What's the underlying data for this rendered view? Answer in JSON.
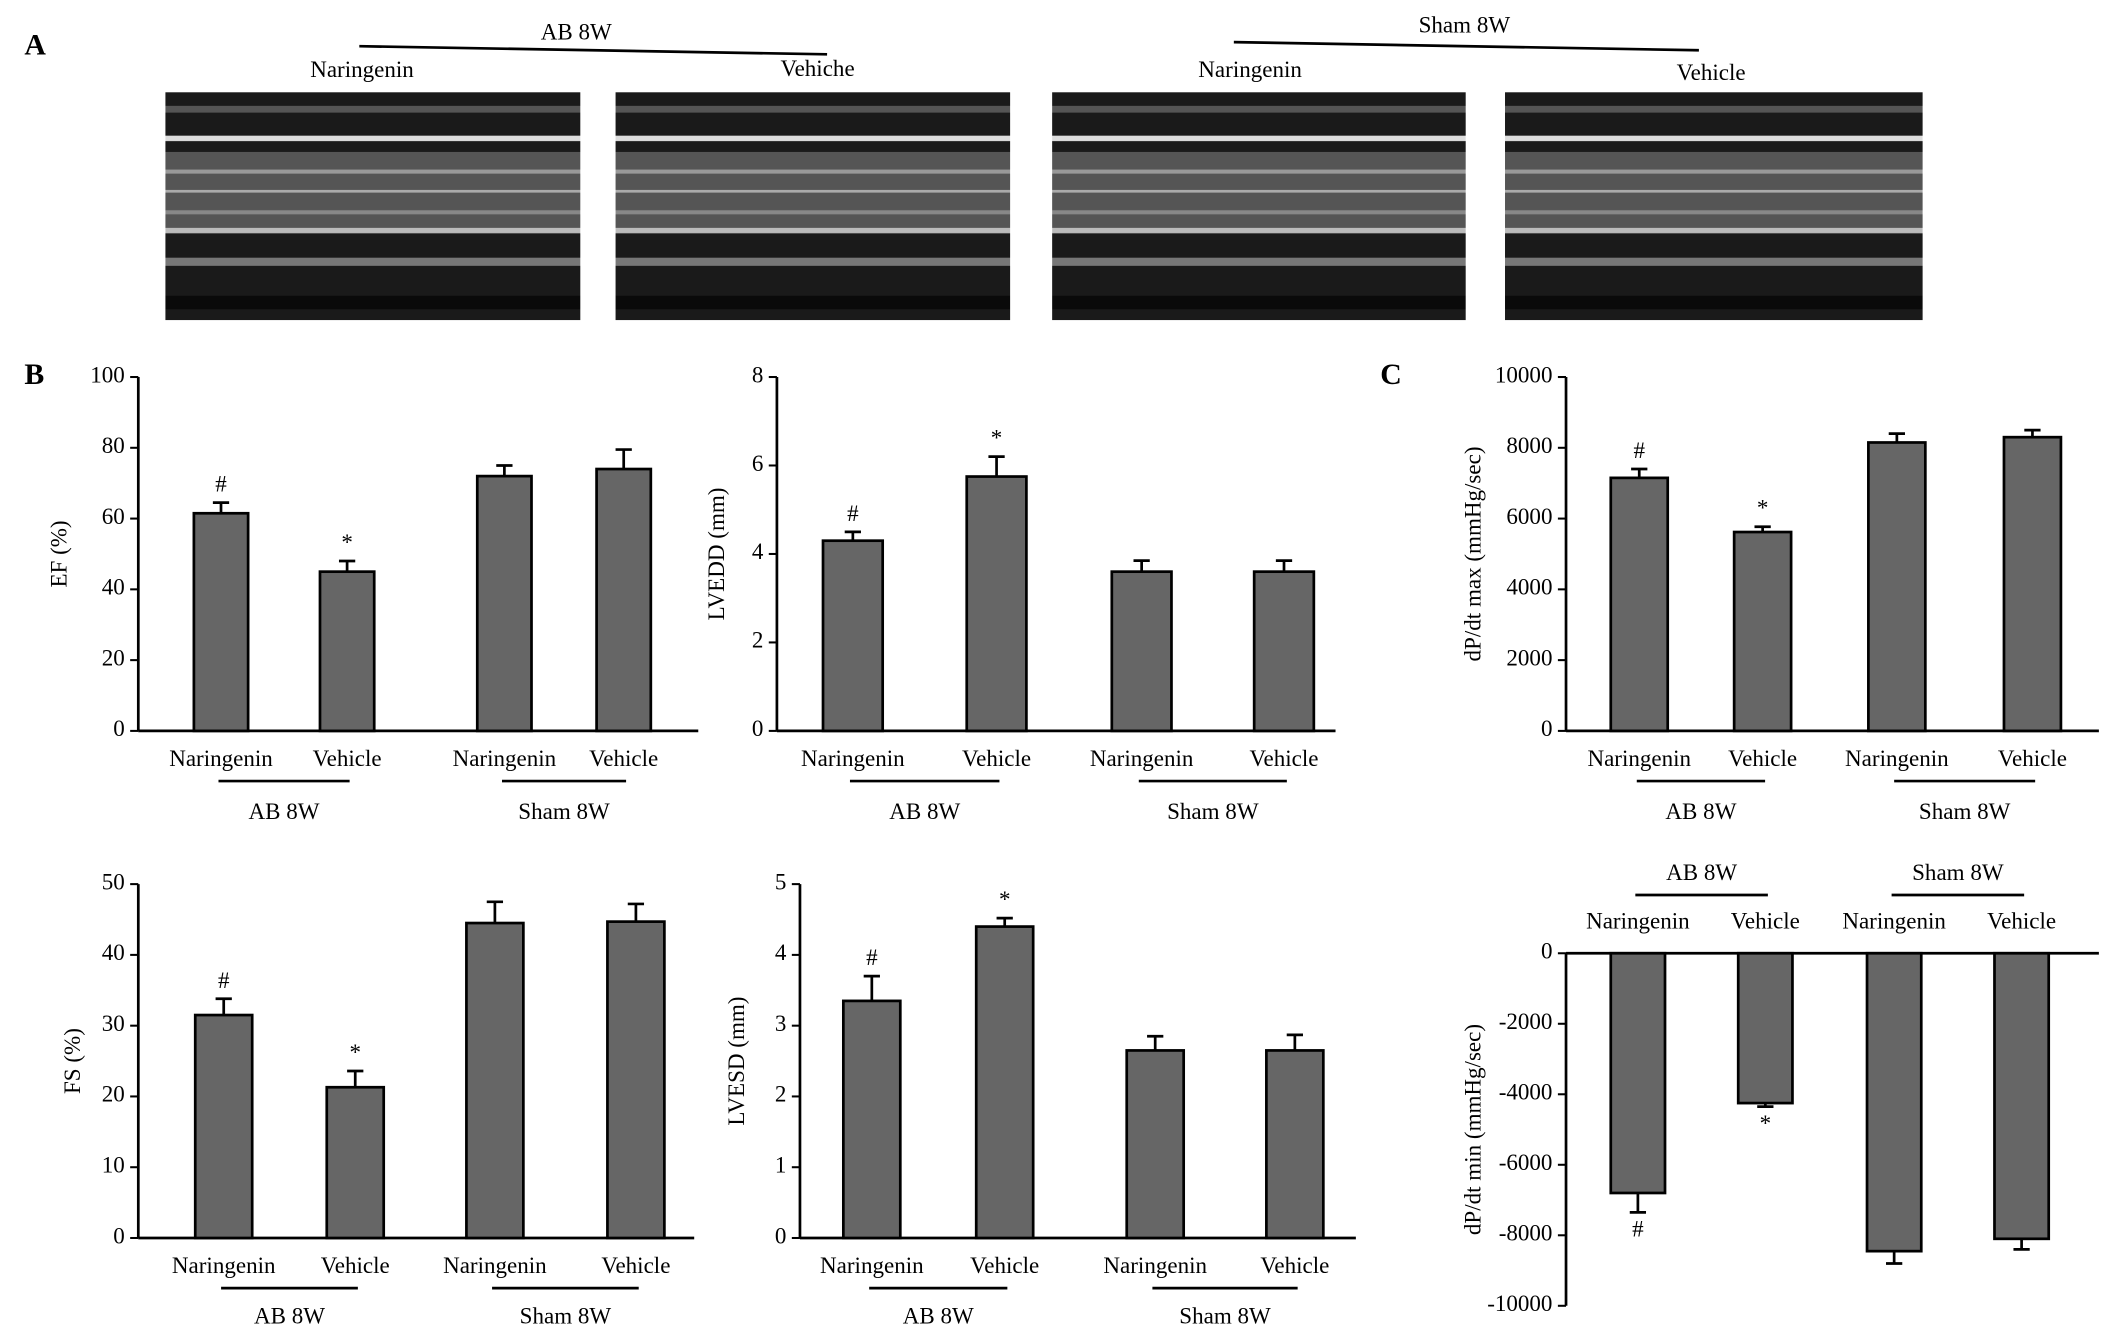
{
  "panels": {
    "a": "A",
    "b": "B",
    "c": "C"
  },
  "echo": {
    "groups": [
      {
        "label": "AB 8W",
        "items": [
          "Naringenin",
          "Vehiche"
        ]
      },
      {
        "label": "Sham 8W",
        "items": [
          "Naringenin",
          "Vehicle"
        ]
      }
    ]
  },
  "chart_data": [
    {
      "type": "bar",
      "ylabel": "EF (%)",
      "categories": [
        "Naringenin",
        "Vehicle",
        "Naringenin",
        "Vehicle"
      ],
      "groups": [
        "AB 8W",
        "Sham 8W"
      ],
      "values": [
        61.5,
        45,
        72,
        74
      ],
      "errors": [
        3,
        3,
        3,
        5.5
      ],
      "markers": [
        "#",
        "*",
        null,
        null
      ],
      "color": "#666666",
      "ylim": [
        0,
        100
      ],
      "yticks": [
        0,
        20,
        40,
        60,
        80,
        100
      ]
    },
    {
      "type": "bar",
      "ylabel": "LVEDD (mm)",
      "categories": [
        "Naringenin",
        "Vehicle",
        "Naringenin",
        "Vehicle"
      ],
      "groups": [
        "AB 8W",
        "Sham 8W"
      ],
      "values": [
        4.3,
        5.75,
        3.6,
        3.6
      ],
      "errors": [
        0.2,
        0.45,
        0.25,
        0.25
      ],
      "markers": [
        "#",
        "*",
        null,
        null
      ],
      "color": "#666666",
      "ylim": [
        0,
        8
      ],
      "yticks": [
        0,
        2,
        4,
        6,
        8
      ]
    },
    {
      "type": "bar",
      "ylabel": "dP/dt max (mmHg/sec)",
      "categories": [
        "Naringenin",
        "Vehicle",
        "Naringenin",
        "Vehicle"
      ],
      "groups": [
        "AB 8W",
        "Sham 8W"
      ],
      "values": [
        7150,
        5620,
        8150,
        8300
      ],
      "errors": [
        250,
        150,
        250,
        200
      ],
      "markers": [
        "#",
        "*",
        null,
        null
      ],
      "color": "#666666",
      "ylim": [
        0,
        10000
      ],
      "yticks": [
        0,
        2000,
        4000,
        6000,
        8000,
        10000
      ]
    },
    {
      "type": "bar",
      "ylabel": "FS (%)",
      "categories": [
        "Naringenin",
        "Vehicle",
        "Naringenin",
        "Vehicle"
      ],
      "groups": [
        "AB 8W",
        "Sham 8W"
      ],
      "values": [
        31.5,
        21.3,
        44.5,
        44.7
      ],
      "errors": [
        2.3,
        2.3,
        3,
        2.5
      ],
      "markers": [
        "#",
        "*",
        null,
        null
      ],
      "color": "#666666",
      "ylim": [
        0,
        50
      ],
      "yticks": [
        0,
        10,
        20,
        30,
        40,
        50
      ]
    },
    {
      "type": "bar",
      "ylabel": "LVESD (mm)",
      "categories": [
        "Naringenin",
        "Vehicle",
        "Naringenin",
        "Vehicle"
      ],
      "groups": [
        "AB 8W",
        "Sham 8W"
      ],
      "values": [
        3.35,
        4.4,
        2.65,
        2.65
      ],
      "errors": [
        0.35,
        0.12,
        0.2,
        0.22
      ],
      "markers": [
        "#",
        "*",
        null,
        null
      ],
      "color": "#666666",
      "ylim": [
        0,
        5
      ],
      "yticks": [
        0,
        1,
        2,
        3,
        4,
        5
      ]
    },
    {
      "type": "bar",
      "ylabel": "dP/dt min (mmHg/sec)",
      "categories": [
        "Naringenin",
        "Vehicle",
        "Naringenin",
        "Vehicle"
      ],
      "groups": [
        "AB 8W",
        "Sham 8W"
      ],
      "values": [
        -6800,
        -4250,
        -8450,
        -8100
      ],
      "errors": [
        550,
        100,
        350,
        300
      ],
      "markers": [
        "#",
        "*",
        null,
        null
      ],
      "color": "#666666",
      "ylim": [
        -10000,
        0
      ],
      "yticks": [
        -10000,
        -8000,
        -6000,
        -4000,
        -2000,
        0
      ]
    }
  ]
}
